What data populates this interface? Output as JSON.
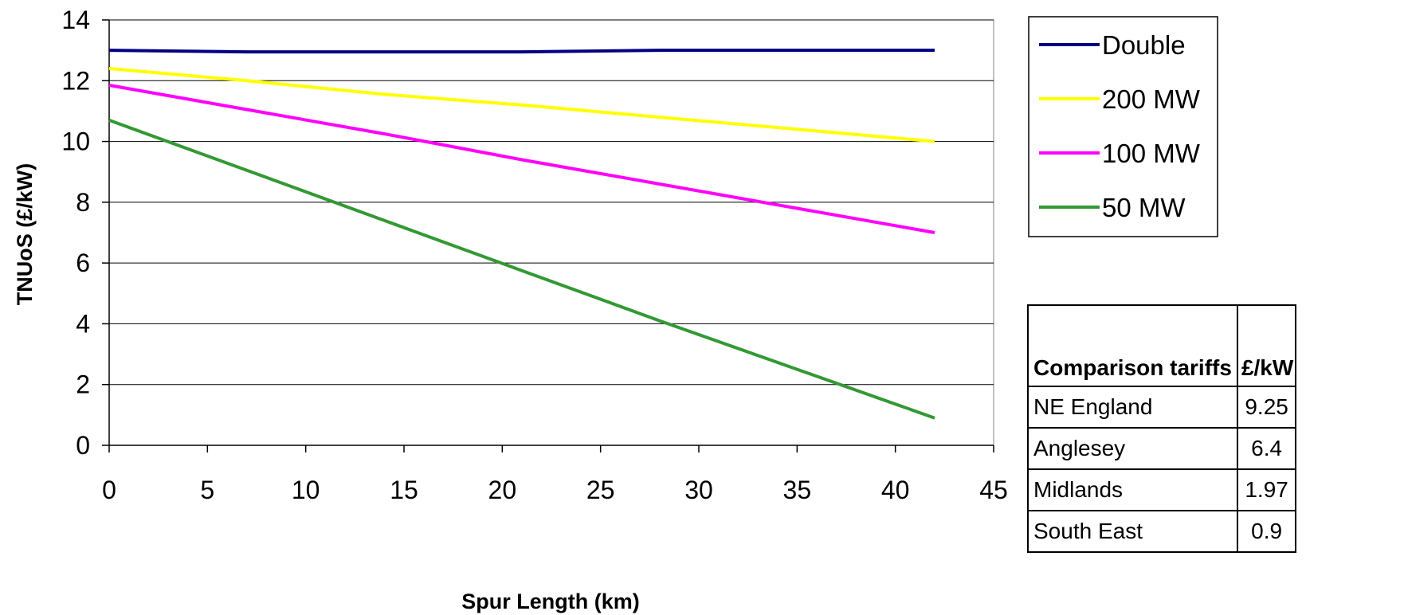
{
  "chart_data": {
    "type": "line",
    "xlabel": "Spur Length (km)",
    "ylabel": "TNUoS (£/kW)",
    "xlim": [
      0,
      45
    ],
    "ylim": [
      0,
      14
    ],
    "xticks": [
      0,
      5,
      10,
      15,
      20,
      25,
      30,
      35,
      40,
      45
    ],
    "yticks": [
      0,
      2,
      4,
      6,
      8,
      10,
      12,
      14
    ],
    "grid": "horizontal",
    "legend_position": "top-right",
    "series": [
      {
        "name": "Double",
        "color": "#000080",
        "x": [
          0,
          7,
          14,
          21,
          28,
          35,
          42
        ],
        "y": [
          13.0,
          12.95,
          12.95,
          12.95,
          13.0,
          13.0,
          13.0
        ]
      },
      {
        "name": "200 MW",
        "color": "#FFFF00",
        "x": [
          0,
          7,
          14,
          21,
          28,
          35,
          42
        ],
        "y": [
          12.4,
          12.0,
          11.55,
          11.2,
          10.8,
          10.4,
          10.0
        ]
      },
      {
        "name": "100 MW",
        "color": "#FF00FF",
        "x": [
          0,
          7,
          14,
          21,
          28,
          35,
          42
        ],
        "y": [
          11.85,
          11.05,
          10.25,
          9.4,
          8.6,
          7.8,
          7.0
        ]
      },
      {
        "name": "50 MW",
        "color": "#339933",
        "x": [
          0,
          7,
          14,
          21,
          28,
          35,
          42
        ],
        "y": [
          10.7,
          9.05,
          7.4,
          5.75,
          4.1,
          2.5,
          0.9
        ]
      }
    ]
  },
  "comparison_table": {
    "header_label": "Comparison tariffs",
    "header_unit": "£/kW",
    "rows": [
      {
        "region": "NE England",
        "value": "9.25"
      },
      {
        "region": "Anglesey",
        "value": "6.4"
      },
      {
        "region": "Midlands",
        "value": "1.97"
      },
      {
        "region": "South East",
        "value": "0.9"
      }
    ]
  }
}
